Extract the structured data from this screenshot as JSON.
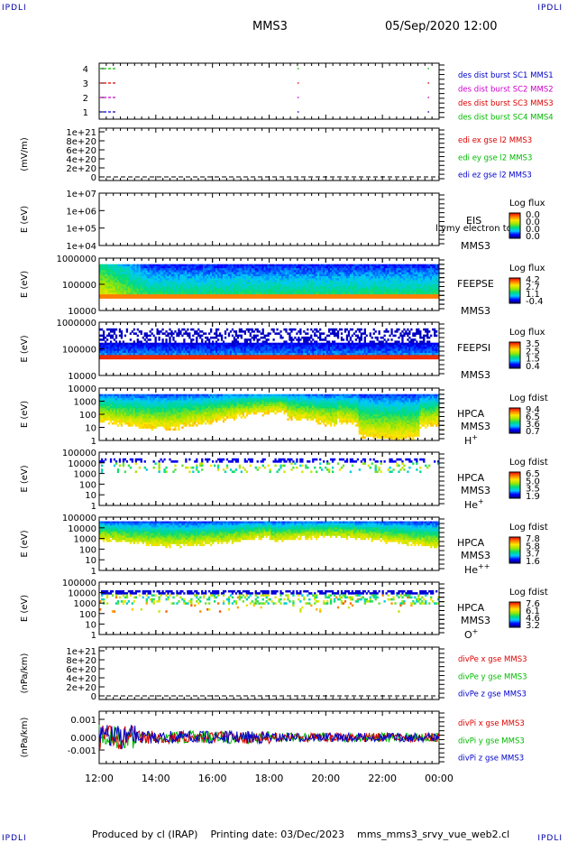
{
  "header": {
    "corner_label": "IPDLI",
    "mission": "MMS3",
    "datetime": "05/Sep/2020 12:00"
  },
  "footer": {
    "produced_by": "Produced by cl (IRAP)",
    "printing_date": "Printing date: 03/Dec/2023",
    "script": "mms_mms3_srvy_vue_web2.cl"
  },
  "colors": {
    "mms1": "#0000cc",
    "mms2": "#cc00cc",
    "mms3": "#dd0000",
    "mms4": "#00bb00",
    "x": "#dd0000",
    "y": "#00bb00",
    "z": "#0000cc"
  },
  "chart_data": [
    {
      "type": "scatter",
      "name": "burst",
      "xlim": [
        "12:00",
        "00:00"
      ],
      "ylim": [
        0.5,
        4.5
      ],
      "yticks": [
        "1",
        "2",
        "3",
        "4"
      ],
      "legend": [
        "des dist burst SC1 MMS1",
        "des dist burst SC2 MMS2",
        "des dist burst SC3 MMS3",
        "des dist burst SC4 MMS4"
      ],
      "segments_hours": [
        [
          12.0,
          12.6
        ],
        [
          19.0,
          19.05
        ],
        [
          23.6,
          23.65
        ]
      ]
    },
    {
      "type": "line",
      "name": "edi",
      "ylabel": "(mV/m)",
      "yticks": [
        "1e+21",
        "8e+20",
        "6e+20",
        "4e+20",
        "2e+20",
        "0"
      ],
      "legend": [
        "edi ex gse l2 MMS3",
        "edi ey gse l2 MMS3",
        "edi ez gse l2 MMS3"
      ]
    },
    {
      "type": "heatmap",
      "name": "eis",
      "ylabel": "E (eV)",
      "yticks": [
        "1e+07",
        "1e+06",
        "1e+05",
        "1e+04"
      ],
      "labels": [
        "EIS",
        "MMS3"
      ],
      "overlay_text": "l ymy electron to",
      "colorbar": {
        "title": "Log flux",
        "ticks": [
          "0.0",
          "0.0",
          "0.0",
          "0.0"
        ]
      }
    },
    {
      "type": "heatmap",
      "name": "feepse",
      "ylabel": "E (eV)",
      "yticks": [
        "1000000",
        "100000",
        "10000"
      ],
      "labels": [
        "FEEPSE",
        "MMS3"
      ],
      "colorbar": {
        "title": "Log flux",
        "ticks": [
          "4.2",
          "2.7",
          "1.1",
          "-0.4"
        ]
      }
    },
    {
      "type": "heatmap",
      "name": "feepsi",
      "ylabel": "E (eV)",
      "yticks": [
        "1000000",
        "100000",
        "10000"
      ],
      "labels": [
        "FEEPSI",
        "MMS3"
      ],
      "colorbar": {
        "title": "Log flux",
        "ticks": [
          "3.5",
          "2.5",
          "1.5",
          "0.4"
        ]
      }
    },
    {
      "type": "heatmap",
      "name": "hpca_h",
      "ylabel": "E (eV)",
      "yticks": [
        "10000",
        "1000",
        "100",
        "10",
        "1"
      ],
      "labels": [
        "HPCA",
        "MMS3"
      ],
      "species": "H",
      "species_sup": "+",
      "colorbar": {
        "title": "Log fdist",
        "ticks": [
          "9.4",
          "6.5",
          "3.6",
          "0.7"
        ]
      }
    },
    {
      "type": "heatmap",
      "name": "hpca_he",
      "ylabel": "E (eV)",
      "yticks": [
        "100000",
        "10000",
        "1000",
        "100",
        "10",
        "1"
      ],
      "labels": [
        "HPCA",
        "MMS3"
      ],
      "species": "He",
      "species_sup": "+",
      "colorbar": {
        "title": "Log fdist",
        "ticks": [
          "6.5",
          "5.0",
          "3.5",
          "1.9"
        ]
      }
    },
    {
      "type": "heatmap",
      "name": "hpca_hepp",
      "ylabel": "E (eV)",
      "yticks": [
        "100000",
        "10000",
        "1000",
        "100",
        "10",
        "1"
      ],
      "labels": [
        "HPCA",
        "MMS3"
      ],
      "species": "He",
      "species_sup": "++",
      "colorbar": {
        "title": "Log fdist",
        "ticks": [
          "7.8",
          "5.8",
          "3.7",
          "1.6"
        ]
      }
    },
    {
      "type": "heatmap",
      "name": "hpca_o",
      "ylabel": "E (eV)",
      "yticks": [
        "100000",
        "10000",
        "1000",
        "100",
        "10",
        "1"
      ],
      "labels": [
        "HPCA",
        "MMS3"
      ],
      "species": "O",
      "species_sup": "+",
      "colorbar": {
        "title": "Log fdist",
        "ticks": [
          "7.6",
          "6.1",
          "4.6",
          "3.2"
        ]
      }
    },
    {
      "type": "line",
      "name": "divpe",
      "ylabel": "(nPa/km)",
      "yticks": [
        "1e+21",
        "8e+20",
        "6e+20",
        "4e+20",
        "2e+20",
        "0"
      ],
      "legend": [
        "divPe x gse MMS3",
        "divPe y gse MMS3",
        "divPe z gse MMS3"
      ]
    },
    {
      "type": "line",
      "name": "divpi",
      "ylabel": "(nPa/km)",
      "yticks": [
        "0.001",
        "0.000",
        "-0.001"
      ],
      "ylim": [
        -0.0015,
        0.0015
      ],
      "legend": [
        "divPi x gse MMS3",
        "divPi y gse MMS3",
        "divPi z gse MMS3"
      ]
    }
  ],
  "xaxis": {
    "ticks": [
      "12:00",
      "14:00",
      "16:00",
      "18:00",
      "20:00",
      "22:00",
      "00:00"
    ],
    "range_hours": [
      12,
      24
    ]
  }
}
